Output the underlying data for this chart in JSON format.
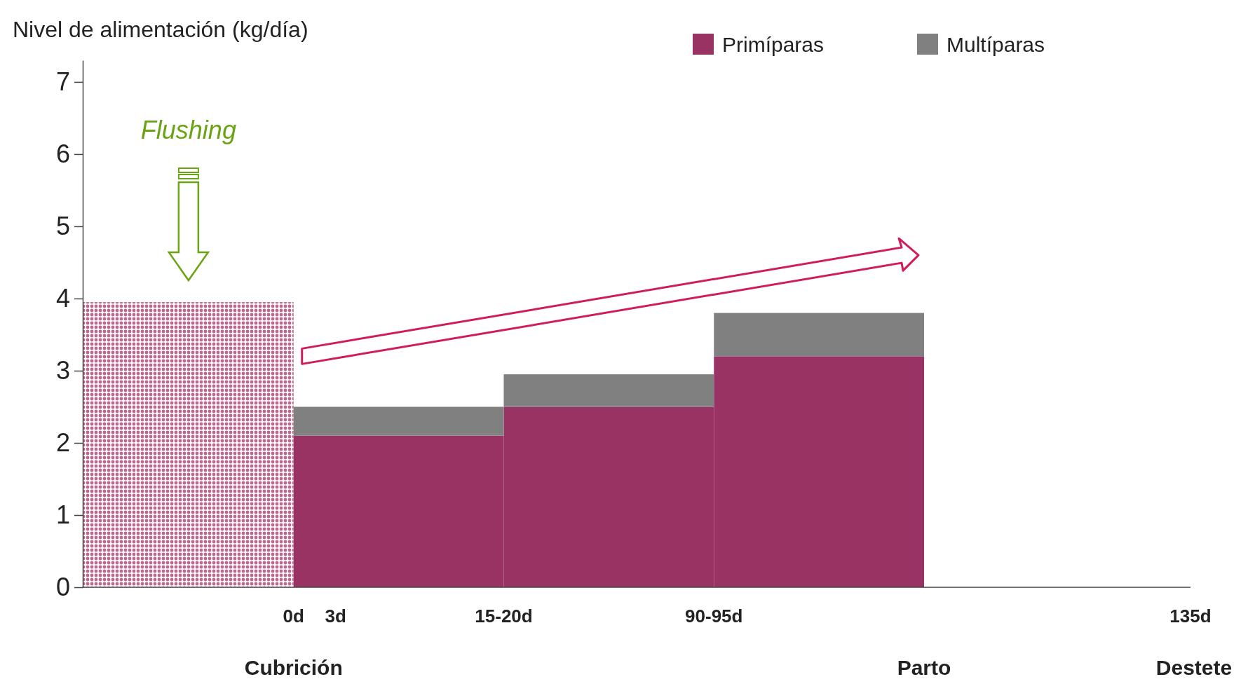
{
  "chart_data": {
    "type": "bar",
    "stacked": true,
    "ylabel": "Nivel de alimentación (kg/día)",
    "categories": [
      null,
      "0d",
      "15-20d",
      "90-95d"
    ],
    "series": [
      {
        "color": "#c2668f",
        "values": [
          3.95,
          null,
          null,
          null
        ]
      },
      {
        "name": "Primíparas",
        "color": "#993363",
        "values": [
          null,
          2.1,
          2.5,
          3.2
        ]
      },
      {
        "name": "Multíparas",
        "color": "#808080",
        "values": [
          null,
          0.4,
          0.45,
          0.6
        ]
      }
    ],
    "ylim": [
      0,
      7.3
    ],
    "yticks": [
      0,
      1,
      2,
      3,
      4,
      5,
      6,
      7
    ],
    "grid": false,
    "legend": "top right",
    "annotations": [
      "Flushing",
      "3d",
      "135d",
      "Cubrición",
      "Parto",
      "Destete"
    ]
  }
}
